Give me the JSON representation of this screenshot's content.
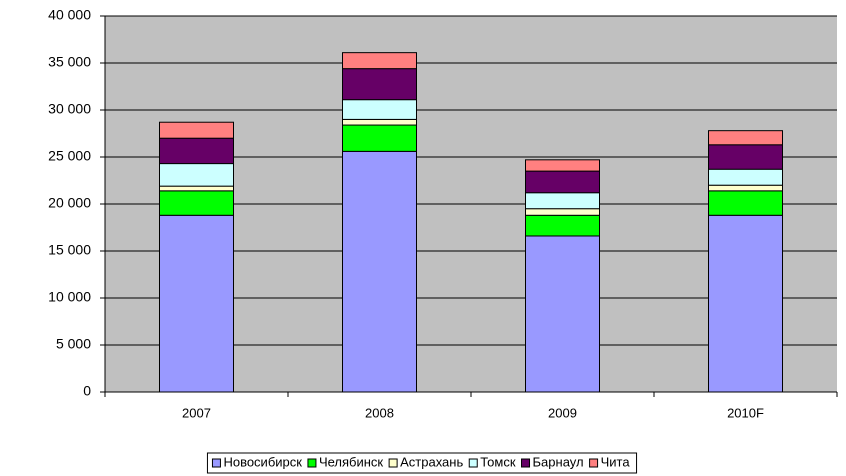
{
  "chart_data": {
    "type": "stacked-bar",
    "categories": [
      "2007",
      "2008",
      "2009",
      "2010F"
    ],
    "series": [
      {
        "name": "Новосибирск",
        "color": "#9999ff",
        "values": [
          18800,
          25600,
          16600,
          18800
        ]
      },
      {
        "name": "Челябинск",
        "color": "#00ff00",
        "values": [
          2600,
          2800,
          2200,
          2600
        ]
      },
      {
        "name": "Астрахань",
        "color": "#ffffcc",
        "values": [
          500,
          600,
          700,
          600
        ]
      },
      {
        "name": "Томск",
        "color": "#ccffff",
        "values": [
          2400,
          2100,
          1700,
          1700
        ]
      },
      {
        "name": "Барнаул",
        "color": "#660066",
        "values": [
          2700,
          3300,
          2300,
          2600
        ]
      },
      {
        "name": "Чита",
        "color": "#ff8080",
        "values": [
          1700,
          1700,
          1200,
          1500
        ]
      }
    ],
    "ylim": [
      0,
      40000
    ],
    "yticks": [
      0,
      {
        "value": 5000,
        "label": "5 000"
      },
      {
        "value": 10000,
        "label": "10 000"
      },
      {
        "value": 15000,
        "label": "15 000"
      },
      {
        "value": 20000,
        "label": "20 000"
      },
      {
        "value": 25000,
        "label": "25 000"
      },
      {
        "value": 30000,
        "label": "30 000"
      },
      {
        "value": 35000,
        "label": "35 000"
      },
      {
        "value": 40000,
        "label": "40 000"
      }
    ],
    "grid": true,
    "plot_background": "#c0c0c0",
    "legend": "bottom"
  }
}
